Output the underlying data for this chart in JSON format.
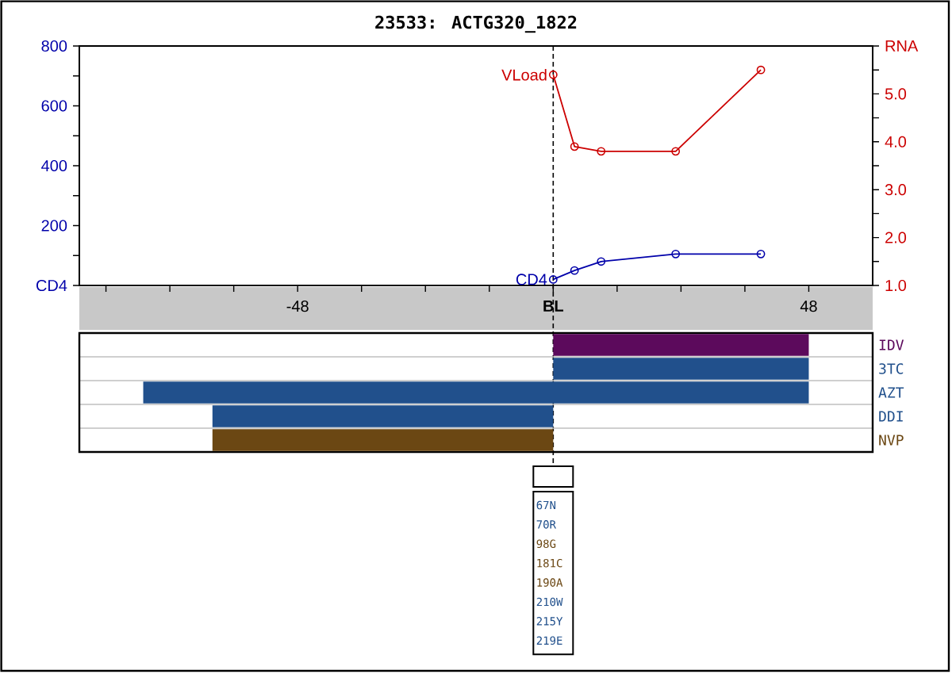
{
  "chart_data": [
    {
      "type": "line",
      "title": "23533: ACTG320_1822",
      "x": [
        0,
        4,
        9,
        23,
        39
      ],
      "series": [
        {
          "name": "VLoad",
          "color": "#cc0000",
          "axis": "y2",
          "values": [
            5.4,
            3.9,
            3.8,
            3.8,
            5.5
          ]
        },
        {
          "name": "CD4",
          "color": "#0000aa",
          "values": [
            20,
            50,
            80,
            105,
            105
          ]
        }
      ],
      "xlim": [
        -89,
        60
      ],
      "xticks": [
        {
          "value": -84,
          "label": null
        },
        {
          "value": -72,
          "label": null
        },
        {
          "value": -60,
          "label": null
        },
        -48,
        {
          "value": -36,
          "label": null
        },
        {
          "value": -24,
          "label": null
        },
        {
          "value": -12,
          "label": null
        },
        {
          "value": 0,
          "label": "BL"
        },
        {
          "value": 12,
          "label": null
        },
        {
          "value": 24,
          "label": null
        },
        {
          "value": 36,
          "label": null
        },
        48
      ],
      "ylim": [
        0,
        800
      ],
      "yticks": [
        {
          "value": 0,
          "label": "CD4"
        },
        {
          "value": 100,
          "label": null
        },
        200,
        {
          "value": 300,
          "label": null
        },
        400,
        {
          "value": 500,
          "label": null
        },
        600,
        {
          "value": 700,
          "label": null
        },
        800
      ],
      "y2lim": [
        1,
        6
      ],
      "y2ticks": [
        {
          "value": 1,
          "label": "1.0"
        },
        {
          "value": 1.5,
          "label": null
        },
        {
          "value": 2,
          "label": "2.0"
        },
        {
          "value": 2.5,
          "label": null
        },
        {
          "value": 3,
          "label": "3.0"
        },
        {
          "value": 3.5,
          "label": null
        },
        {
          "value": 4,
          "label": "4.0"
        },
        {
          "value": 4.5,
          "label": null
        },
        {
          "value": 5,
          "label": "5.0"
        },
        {
          "value": 5.5,
          "label": null
        },
        {
          "value": 6,
          "label": "RNA"
        }
      ],
      "marker": "circle",
      "ref_lines": [
        {
          "axis": "x",
          "value": 0,
          "color": "#000000",
          "line_style": "dashed"
        }
      ]
    },
    {
      "type": "bar",
      "orientation": "horizontal",
      "categories": [
        "IDV",
        "3TC",
        "AZT",
        "DDI",
        "NVP"
      ],
      "base": [
        0,
        0,
        -77,
        -64,
        -64
      ],
      "values": [
        48,
        48,
        125,
        64,
        64
      ],
      "colors": [
        "#5c0a5c",
        "#21508c",
        "#21508c",
        "#21508c",
        "#6b4713"
      ],
      "xlim": [
        -89,
        60
      ],
      "tick_labels": "y",
      "grid": "y"
    },
    {
      "type": "other",
      "annotations": [
        "67N",
        "70R",
        "98G",
        "181C",
        "190A",
        "210W",
        "215Y",
        "219E"
      ],
      "colors": [
        "#21508c",
        "#21508c",
        "#6b4713",
        "#6b4713",
        "#6b4713",
        "#21508c",
        "#21508c",
        "#21508c"
      ]
    }
  ]
}
